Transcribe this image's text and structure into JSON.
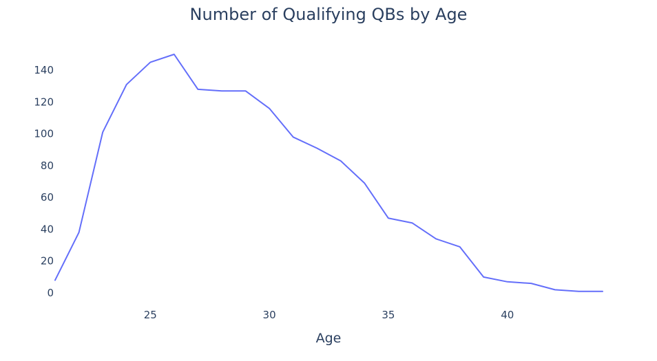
{
  "colors": {
    "text": "#2a3f5f",
    "background": "#ffffff"
  },
  "chart_data": {
    "type": "line",
    "title": "Number of Qualifying QBs by Age",
    "xlabel": "Age",
    "ylabel": "",
    "xlim": [
      21,
      44
    ],
    "ylim": [
      0,
      150
    ],
    "xticks": [
      25,
      30,
      35,
      40
    ],
    "yticks": [
      0,
      20,
      40,
      60,
      80,
      100,
      120,
      140
    ],
    "grid": false,
    "legend": "none",
    "series": [
      {
        "color": "#636efa",
        "x": [
          21,
          22,
          23,
          24,
          25,
          26,
          27,
          28,
          29,
          30,
          31,
          32,
          33,
          34,
          35,
          36,
          37,
          38,
          39,
          40,
          41,
          42,
          43,
          44
        ],
        "y": [
          8,
          38,
          101,
          131,
          145,
          150,
          128,
          127,
          127,
          116,
          98,
          91,
          83,
          69,
          47,
          44,
          34,
          29,
          10,
          7,
          6,
          2,
          1,
          1
        ]
      }
    ]
  }
}
